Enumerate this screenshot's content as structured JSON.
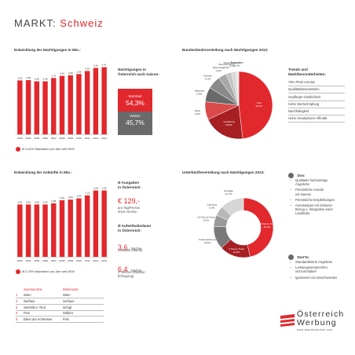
{
  "page": {
    "title_prefix": "MARKT:",
    "title_suffix": "Schweiz",
    "accent": "#e1282d",
    "grey": "#6a6a6a"
  },
  "chart_data": [
    {
      "type": "bar",
      "title": "Entwicklung der Nächtigungen in Mio.:",
      "categories": [
        "2003",
        "2004",
        "2005",
        "2006",
        "2007",
        "2008",
        "2009",
        "2010",
        "2011",
        "2012",
        "2013"
      ],
      "values": [
        3.54,
        3.56,
        3.48,
        3.48,
        3.7,
        3.84,
        3.88,
        3.96,
        4.16,
        4.36,
        4.41
      ],
      "value_labels": [
        "3,54",
        "3,56",
        "3,48",
        "3,48",
        "3,70",
        "3,84",
        "3,88",
        "3,96",
        "4,16",
        "4,36",
        "4,41"
      ],
      "color": "#e1282d",
      "ylim": [
        0,
        4.8
      ]
    },
    {
      "type": "bar",
      "title": "Entwicklung der Ankünfte in Mio.:",
      "categories": [
        "2003",
        "2004",
        "2005",
        "2006",
        "2007",
        "2008",
        "2009",
        "2010",
        "2011",
        "2012",
        "2013"
      ],
      "values": [
        0.86,
        0.86,
        0.86,
        0.86,
        0.88,
        0.93,
        0.94,
        0.96,
        1.01,
        1.09,
        1.09
      ],
      "value_labels": [
        "0,86",
        "0,86",
        "0,86",
        "0,86",
        "0,88",
        "0,93",
        "0,94",
        "0,96",
        "1,01",
        "1,09",
        "1,09"
      ],
      "color": "#e1282d",
      "ylim": [
        0,
        1.2
      ]
    },
    {
      "type": "pie",
      "title": "Bundesländerverteilung nach Nächtigungen 2013:",
      "slices": [
        {
          "name": "Tirol",
          "value": 48.1,
          "label": "48,1%",
          "color": "#e1282d"
        },
        {
          "name": "Vorarlberg",
          "value": 20.0,
          "label": "20,0%",
          "color": "#a61f23"
        },
        {
          "name": "Wien",
          "value": 8.6,
          "label": "8,6%",
          "color": "#d94a4a"
        },
        {
          "name": "Salzburg",
          "value": 6.9,
          "label": "6,9%",
          "color": "#6a6a6a"
        },
        {
          "name": "Kärnten",
          "value": 6.3,
          "label": "6,3%",
          "color": "#8a8a8a"
        },
        {
          "name": "Steiermark",
          "value": 4.0,
          "label": "4,0%",
          "color": "#a8a8a8"
        },
        {
          "name": "Oberösterreich",
          "value": 2.6,
          "label": "2,6%",
          "color": "#c4c4c4"
        },
        {
          "name": "Niederösterreich",
          "value": 2.2,
          "label": "2,2%",
          "color": "#d8d8d8"
        },
        {
          "name": "Burgenland",
          "value": 1.3,
          "label": "1,3%",
          "color": "#e8e8e8"
        }
      ]
    },
    {
      "type": "pie",
      "subtype": "donut",
      "title": "Unterkünfteverteilung nach Nächtigungen 2013:",
      "slices": [
        {
          "name": "4/5 Sterne Hotel",
          "value": 46.4,
          "label": "46,4%",
          "color": "#e1282d"
        },
        {
          "name": "3 Sterne Hotel",
          "value": 16.8,
          "label": "16,8%",
          "color": "#a61f23"
        },
        {
          "name": "Ferienwohnung",
          "value": 12.6,
          "label": "12,6%",
          "color": "#7a7a7a"
        },
        {
          "name": "1/2 Sterne Hotel",
          "value": 6.2,
          "label": "6,2%",
          "color": "#9a9a9a"
        },
        {
          "name": "Camping",
          "value": 5.3,
          "label": "5,3%",
          "color": "#b8b8b8"
        },
        {
          "name": "Sonstige",
          "value": 12.7,
          "label": "12,7%",
          "color": "#d6d6d6"
        }
      ]
    }
  ],
  "growth1": {
    "text": "Ø 2,61% Wachstum pro Jahr seit 2003"
  },
  "growth2": {
    "text": "Ø 3,70% Wachstum pro Jahr seit 2003"
  },
  "season": {
    "heading_lines": [
      "Nächtigungen in",
      "Österreich nach Saison:"
    ],
    "summer_label": "Sommer",
    "summer_value": "54,3%",
    "winter_label": "Winter",
    "winter_value": "45,7%"
  },
  "trends": {
    "heading_lines": [
      "Trends und",
      "Marktbesonderheiten:"
    ],
    "items": [
      "78% PKW Anreise",
      "Qualitätsbewusstsein",
      "Gepflegte Gastlichkeit",
      "Hohe Wertschöpfung",
      "Nachhaltigkeit",
      "Hohe Smartphone-Affinität"
    ]
  },
  "spend": {
    "heading_lines": [
      "Ø Ausgaben",
      "in Österreich:"
    ],
    "value": "€ 129,-",
    "sub_lines": [
      "pro Tag/Person",
      "ohne Anreise"
    ]
  },
  "stay": {
    "heading_lines": [
      "Ø Aufenthaltsdauer",
      "in Österreich:"
    ],
    "value1": "3,6",
    "unit1": "Nächte",
    "source1": "(Statistik Austria)",
    "value2": "6,4",
    "unit2": "Nächte",
    "source2_lines": [
      "(T-MONA Urlauber-",
      "befragung)"
    ]
  },
  "top_places": {
    "summer_header": "Sommerorte:",
    "winter_header": "Winterorte:",
    "rows": [
      {
        "rank": "1",
        "summer": "Wien",
        "winter": "Wien"
      },
      {
        "rank": "2",
        "summer": "Serfaus",
        "winter": "Serfaus"
      },
      {
        "rank": "3",
        "summer": "Seefeld in Tirol",
        "winter": "Ischgl"
      },
      {
        "rank": "4",
        "summer": "Fiss",
        "winter": "Sölden"
      },
      {
        "rank": "5",
        "summer": "Eben am Achensee",
        "winter": "Fiss"
      }
    ]
  },
  "dos": {
    "heading": "Dos:",
    "items": [
      [
        "Qualitativ hochwertige",
        "Angebote"
      ],
      [
        "Persönliche Anrede",
        "mit Namen"
      ],
      [
        "Persönliche Empfehlungen"
      ],
      [
        "Anreisetipps mit Schweiz-",
        "Bezug u. Integration einer",
        "Landkarte"
      ]
    ]
  },
  "donts": {
    "heading": "Don'ts:",
    "items": [
      [
        "Standardisierte Angebote"
      ],
      [
        "Leistungsversprechen",
        "nicht einhalten"
      ],
      [
        "Ignorieren von Beschwerden"
      ]
    ]
  },
  "logo": {
    "line1": "Österreich",
    "line2": "Werbung",
    "url": "www.austriatourism.com"
  }
}
